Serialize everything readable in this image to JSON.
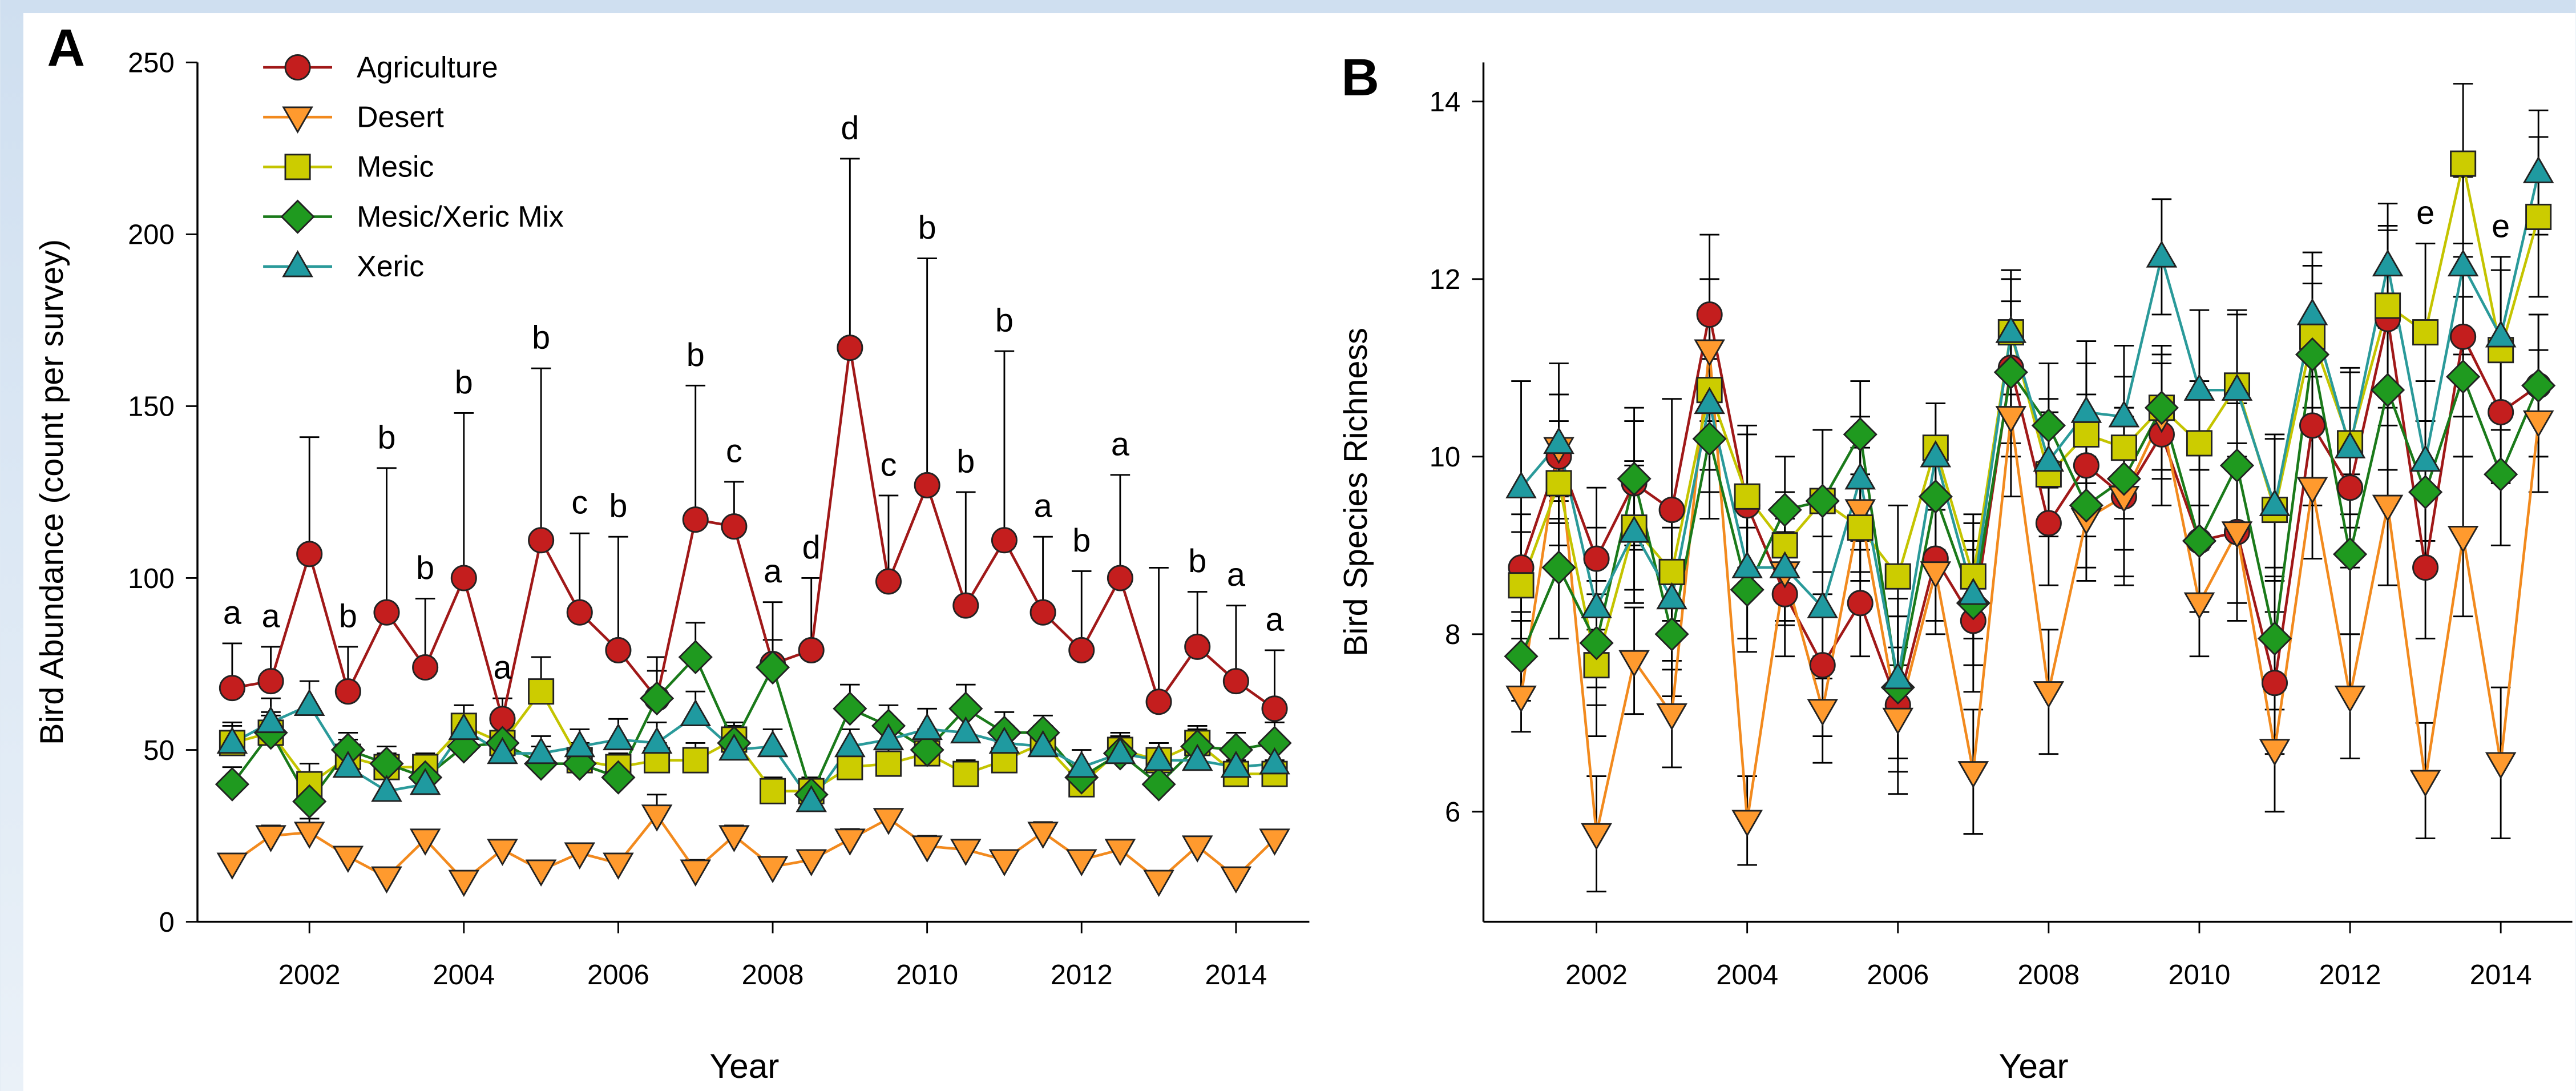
{
  "chart_data": [
    {
      "type": "line",
      "panel_label": "A",
      "y_label": "Bird Abundance (count per survey)",
      "x_label": "Year",
      "x": [
        2001,
        2001.5,
        2002,
        2002.5,
        2003,
        2003.5,
        2004,
        2004.5,
        2005,
        2005.5,
        2006,
        2006.5,
        2007,
        2007.5,
        2008,
        2008.5,
        2009,
        2009.5,
        2010,
        2010.5,
        2011,
        2011.5,
        2012,
        2012.5,
        2013,
        2013.5,
        2014,
        2014.5
      ],
      "xlim": [
        2000.55,
        2014.95
      ],
      "xticks": [
        2002,
        2004,
        2006,
        2008,
        2010,
        2012,
        2014
      ],
      "ylim": [
        0,
        250
      ],
      "yticks": [
        0,
        50,
        100,
        150,
        200,
        250
      ],
      "legend": true,
      "legend_position": "upper left",
      "error_direction": "up",
      "group_letters": [
        "a",
        "a",
        null,
        "b",
        "b",
        "b",
        "b",
        "a",
        "b",
        "c",
        "b",
        null,
        "b",
        "c",
        "a",
        "d",
        "d",
        "c",
        "b",
        "b",
        "b",
        "a",
        "b",
        "a",
        null,
        "b",
        "a",
        "a"
      ],
      "series": [
        {
          "name": "Agriculture",
          "marker": "circle",
          "color": "#a01818",
          "fill": "#c41e1e",
          "values": [
            68,
            70,
            107,
            67,
            90,
            74,
            100,
            59,
            111,
            90,
            79,
            65,
            117,
            115,
            75,
            79,
            167,
            99,
            127,
            92,
            111,
            90,
            79,
            100,
            64,
            80,
            70,
            62
          ],
          "errors": [
            13,
            10,
            34,
            13,
            42,
            20,
            48,
            6,
            50,
            23,
            33,
            12,
            39,
            13,
            18,
            21,
            55,
            25,
            66,
            33,
            55,
            22,
            23,
            30,
            39,
            16,
            22,
            17
          ]
        },
        {
          "name": "Desert",
          "marker": "triangle-down",
          "color": "#f28a1e",
          "fill": "#ff9a2e",
          "values": [
            17,
            25,
            26,
            19,
            13,
            24,
            12,
            21,
            15,
            20,
            17,
            31,
            15,
            25,
            16,
            18,
            24,
            30,
            22,
            21,
            18,
            26,
            18,
            21,
            12,
            22,
            13,
            24
          ],
          "errors": [
            2,
            3,
            4,
            2,
            2,
            2,
            2,
            2,
            2,
            2,
            2,
            6,
            3,
            3,
            2,
            2,
            3,
            2,
            3,
            2,
            2,
            3,
            2,
            2,
            2,
            2,
            2,
            2
          ]
        },
        {
          "name": "Mesic",
          "marker": "square",
          "color": "#c4c400",
          "fill": "#cccc00",
          "values": [
            52,
            55,
            40,
            48,
            45,
            45,
            57,
            52,
            67,
            47,
            45,
            47,
            47,
            53,
            38,
            38,
            45,
            46,
            49,
            43,
            47,
            52,
            40,
            50,
            47,
            52,
            43,
            43
          ],
          "errors": [
            5,
            5,
            6,
            5,
            4,
            4,
            6,
            5,
            10,
            5,
            4,
            5,
            5,
            5,
            4,
            4,
            5,
            5,
            5,
            4,
            5,
            5,
            4,
            5,
            5,
            5,
            4,
            4
          ]
        },
        {
          "name": "Mesic/Xeric Mix",
          "marker": "diamond",
          "color": "#1a7a1a",
          "fill": "#1f9a1f",
          "values": [
            40,
            55,
            35,
            50,
            46,
            42,
            51,
            52,
            46,
            46,
            42,
            65,
            77,
            52,
            74,
            37,
            62,
            57,
            50,
            62,
            55,
            55,
            42,
            49,
            40,
            51,
            50,
            52
          ],
          "errors": [
            5,
            6,
            6,
            5,
            5,
            5,
            6,
            6,
            5,
            5,
            5,
            8,
            10,
            5,
            8,
            4,
            7,
            6,
            6,
            7,
            6,
            5,
            4,
            5,
            4,
            5,
            5,
            6
          ]
        },
        {
          "name": "Xeric",
          "marker": "triangle-up",
          "color": "#2a9a9a",
          "fill": "#1f9aa0",
          "values": [
            52,
            58,
            63,
            45,
            38,
            40,
            56,
            49,
            49,
            51,
            53,
            52,
            60,
            50,
            51,
            35,
            51,
            53,
            56,
            55,
            52,
            51,
            45,
            49,
            47,
            47,
            45,
            46
          ],
          "errors": [
            6,
            7,
            7,
            5,
            4,
            5,
            7,
            5,
            5,
            5,
            6,
            6,
            7,
            5,
            5,
            4,
            5,
            5,
            6,
            6,
            5,
            5,
            5,
            5,
            5,
            5,
            5,
            5
          ]
        }
      ]
    },
    {
      "type": "line",
      "panel_label": "B",
      "y_label": "Bird Species Richness",
      "x_label": "Year",
      "x": [
        2001,
        2001.5,
        2002,
        2002.5,
        2003,
        2003.5,
        2004,
        2004.5,
        2005,
        2005.5,
        2006,
        2006.5,
        2007,
        2007.5,
        2008,
        2008.5,
        2009,
        2009.5,
        2010,
        2010.5,
        2011,
        2011.5,
        2012,
        2012.5,
        2013,
        2013.5,
        2014,
        2014.5
      ],
      "xlim": [
        2000.5,
        2014.95
      ],
      "xticks": [
        2002,
        2004,
        2006,
        2008,
        2010,
        2012,
        2014
      ],
      "ylim": [
        4.76,
        14.44
      ],
      "yticks": [
        6,
        8,
        10,
        12,
        14
      ],
      "legend": false,
      "error_direction": "both",
      "group_letters": [
        null,
        null,
        null,
        null,
        null,
        null,
        null,
        null,
        null,
        null,
        null,
        null,
        null,
        null,
        null,
        null,
        null,
        null,
        null,
        null,
        null,
        null,
        null,
        null,
        "e",
        null,
        "e",
        null
      ],
      "series": [
        {
          "marker": "circle",
          "color": "#a01818",
          "fill": "#c41e1e",
          "values": [
            8.75,
            10.0,
            8.85,
            9.7,
            9.4,
            11.6,
            9.45,
            8.45,
            7.65,
            8.35,
            7.2,
            8.85,
            8.15,
            11.0,
            9.25,
            9.9,
            9.55,
            10.25,
            9.05,
            9.15,
            7.45,
            10.35,
            9.65,
            11.55,
            8.75,
            11.35,
            10.5,
            10.8
          ],
          "errors": [
            0.6,
            0.7,
            0.8,
            0.7,
            1.25,
            0.9,
            0.8,
            0.7,
            0.8,
            0.6,
            1.0,
            0.7,
            0.8,
            1.0,
            0.7,
            0.8,
            1.0,
            0.8,
            0.8,
            1.0,
            0.8,
            0.9,
            0.9,
            1.0,
            0.8,
            0.9,
            0.8,
            0.8
          ]
        },
        {
          "marker": "triangle-down",
          "color": "#f28a1e",
          "fill": "#ff9a2e",
          "values": [
            7.3,
            10.1,
            5.75,
            7.7,
            7.1,
            11.2,
            5.9,
            8.7,
            7.15,
            9.4,
            7.05,
            8.7,
            6.45,
            10.45,
            7.35,
            9.3,
            9.55,
            10.45,
            8.35,
            9.15,
            6.7,
            9.65,
            7.3,
            9.45,
            6.35,
            9.1,
            6.55,
            10.4
          ],
          "errors": [
            0.4,
            0.6,
            0.65,
            0.6,
            0.6,
            0.8,
            0.5,
            0.6,
            0.6,
            0.7,
            0.6,
            0.7,
            0.7,
            0.9,
            0.7,
            0.7,
            0.9,
            0.7,
            0.6,
            0.8,
            0.7,
            0.8,
            0.7,
            0.9,
            0.65,
            0.9,
            0.85,
            0.8
          ]
        },
        {
          "marker": "square",
          "color": "#c4c400",
          "fill": "#cccc00",
          "values": [
            8.55,
            9.7,
            7.65,
            9.2,
            8.7,
            10.75,
            9.55,
            9.0,
            9.5,
            9.2,
            8.65,
            10.1,
            8.65,
            11.4,
            9.8,
            10.25,
            10.1,
            10.55,
            10.15,
            10.8,
            9.4,
            11.35,
            10.15,
            11.7,
            11.4,
            13.3,
            11.2,
            12.7
          ],
          "errors": [
            0.6,
            0.7,
            0.8,
            0.7,
            0.7,
            0.9,
            0.8,
            0.6,
            0.8,
            0.6,
            0.8,
            0.5,
            0.7,
            0.7,
            0.7,
            0.8,
            0.8,
            0.7,
            0.7,
            0.8,
            0.8,
            0.8,
            0.8,
            0.9,
            1.0,
            0.9,
            0.9,
            0.9
          ]
        },
        {
          "marker": "diamond",
          "color": "#1a7a1a",
          "fill": "#1f9a1f",
          "values": [
            7.75,
            8.75,
            7.9,
            9.75,
            8.0,
            10.2,
            8.5,
            9.4,
            9.5,
            10.25,
            7.4,
            9.55,
            8.35,
            10.95,
            10.35,
            9.45,
            9.75,
            10.55,
            9.05,
            9.9,
            7.95,
            11.15,
            8.9,
            10.75,
            9.6,
            10.9,
            9.8,
            10.8
          ],
          "errors": [
            0.5,
            0.8,
            0.7,
            0.8,
            0.7,
            0.9,
            0.7,
            0.6,
            0.8,
            0.6,
            0.8,
            0.6,
            0.7,
            0.8,
            0.7,
            0.7,
            0.8,
            0.7,
            0.8,
            0.7,
            0.8,
            0.8,
            0.9,
            0.9,
            0.8,
            0.9,
            0.8,
            0.8
          ]
        },
        {
          "marker": "triangle-up",
          "color": "#2a9a9a",
          "fill": "#1f9aa0",
          "values": [
            9.65,
            10.15,
            8.3,
            9.15,
            8.4,
            10.6,
            8.75,
            8.75,
            8.3,
            9.75,
            7.5,
            10.0,
            8.45,
            11.4,
            9.95,
            10.5,
            10.45,
            12.25,
            10.75,
            10.75,
            9.45,
            11.6,
            10.1,
            12.15,
            9.95,
            12.15,
            11.35,
            13.2
          ],
          "errors": [
            1.2,
            0.9,
            0.9,
            0.8,
            0.8,
            1.0,
            0.8,
            0.6,
            0.8,
            0.7,
            0.9,
            0.6,
            0.8,
            0.7,
            0.7,
            0.8,
            0.8,
            0.65,
            0.9,
            0.9,
            0.8,
            0.7,
            0.9,
            0.7,
            0.9,
            1.0,
            0.9,
            0.7
          ]
        }
      ]
    }
  ]
}
